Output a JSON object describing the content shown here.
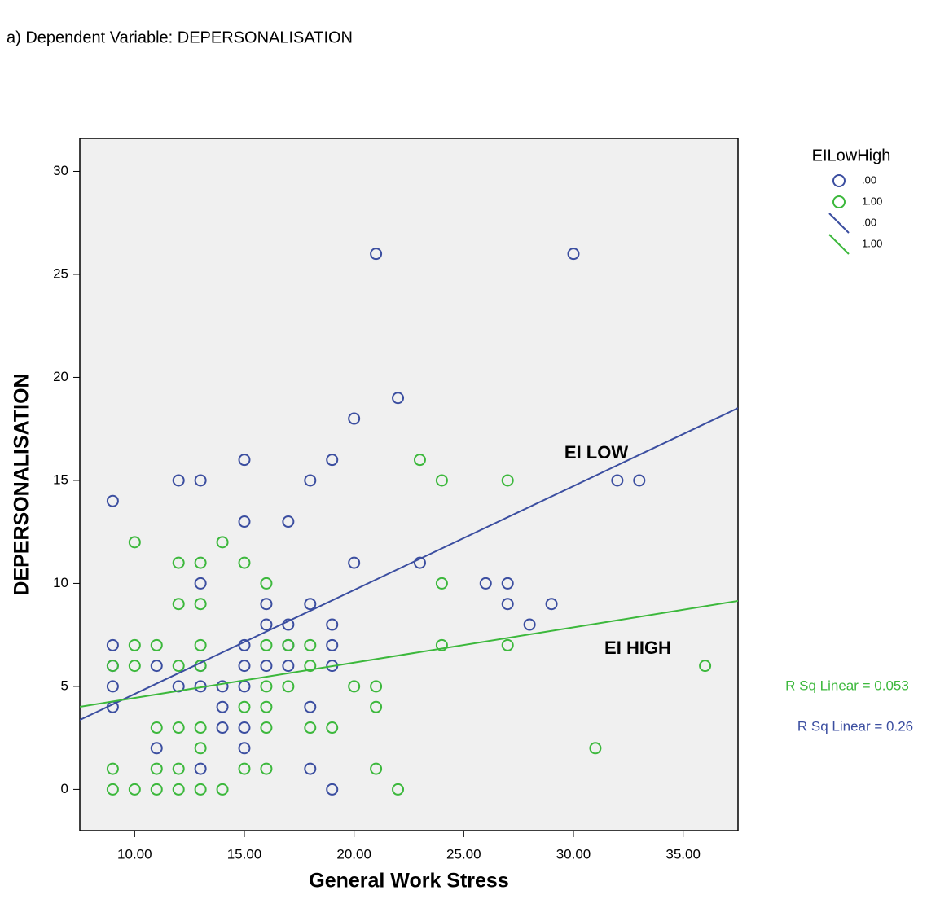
{
  "chart_data": {
    "type": "scatter",
    "title": "a) Dependent Variable: DEPERSONALISATION",
    "x_label": "General Work Stress",
    "y_label": "DEPERSONALISATION",
    "legend_title": "EILowHigh",
    "xlim": [
      7.5,
      37.5
    ],
    "ylim": [
      -2,
      31.6
    ],
    "xticks": [
      {
        "value": 10,
        "label": "10.00"
      },
      {
        "value": 15,
        "label": "15.00"
      },
      {
        "value": 20,
        "label": "20.00"
      },
      {
        "value": 25,
        "label": "25.00"
      },
      {
        "value": 30,
        "label": "30.00"
      },
      {
        "value": 35,
        "label": "35.00"
      }
    ],
    "yticks": [
      0,
      5,
      10,
      15,
      20,
      25,
      30
    ],
    "grid": false,
    "background": "#f0f0f0",
    "series": [
      {
        "name": ".00",
        "kind": "points",
        "color": "#3b4ea0",
        "x": [
          21,
          30,
          9,
          12,
          13,
          15,
          15,
          17,
          18,
          19,
          20,
          22,
          32,
          33,
          13,
          20,
          23,
          26,
          27,
          16,
          18,
          27,
          29,
          16,
          17,
          19,
          28,
          9,
          15,
          17,
          19,
          9,
          11,
          13,
          15,
          16,
          17,
          19,
          9,
          12,
          13,
          14,
          15,
          9,
          14,
          18,
          14,
          15,
          11,
          15,
          13,
          18,
          19
        ],
        "values": [
          26,
          26,
          14,
          15,
          15,
          16,
          13,
          13,
          15,
          16,
          18,
          19,
          15,
          15,
          10,
          11,
          11,
          10,
          10,
          9,
          9,
          9,
          9,
          8,
          8,
          8,
          8,
          7,
          7,
          7,
          7,
          6,
          6,
          6,
          6,
          6,
          6,
          6,
          5,
          5,
          5,
          5,
          5,
          4,
          4,
          4,
          3,
          3,
          2,
          2,
          1,
          1,
          0
        ]
      },
      {
        "name": "1.00",
        "kind": "points",
        "color": "#3cb83c",
        "x": [
          10,
          14,
          12,
          13,
          15,
          12,
          13,
          16,
          24,
          23,
          24,
          27,
          10,
          11,
          13,
          16,
          17,
          18,
          24,
          27,
          9,
          10,
          12,
          13,
          18,
          36,
          16,
          17,
          20,
          21,
          15,
          16,
          21,
          11,
          12,
          13,
          16,
          18,
          19,
          13,
          31,
          9,
          11,
          12,
          15,
          16,
          21,
          9,
          10,
          11,
          12,
          13,
          14,
          22
        ],
        "values": [
          12,
          12,
          11,
          11,
          11,
          9,
          9,
          10,
          10,
          16,
          15,
          15,
          7,
          7,
          7,
          7,
          7,
          7,
          7,
          7,
          6,
          6,
          6,
          6,
          6,
          6,
          5,
          5,
          5,
          5,
          4,
          4,
          4,
          3,
          3,
          3,
          3,
          3,
          3,
          2,
          2,
          1,
          1,
          1,
          1,
          1,
          1,
          0,
          0,
          0,
          0,
          0,
          0,
          0
        ]
      },
      {
        "name": ".00",
        "kind": "fit",
        "color": "#3b4ea0",
        "x": [
          7.5,
          37.5
        ],
        "values": [
          3.37,
          18.51
        ]
      },
      {
        "name": "1.00",
        "kind": "fit",
        "color": "#3cb83c",
        "x": [
          7.5,
          37.5
        ],
        "values": [
          4.01,
          9.15
        ]
      }
    ],
    "annotations": [
      "EI LOW",
      "EI HIGH"
    ],
    "fit_labels": [
      {
        "text": "R Sq Linear = 0.053",
        "color": "#3cb83c"
      },
      {
        "text": "R Sq Linear = 0.26",
        "color": "#3b4ea0"
      }
    ]
  }
}
